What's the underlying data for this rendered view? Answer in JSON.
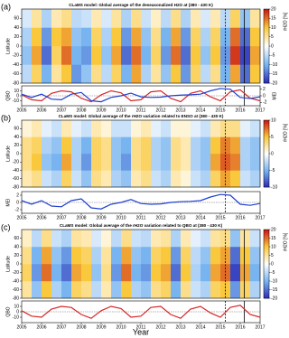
{
  "chart_data": [
    {
      "type": "heatmap",
      "panel_label": "(a)",
      "title": "CLaMS model: Global average of the deseasonalized H2O at (380 - 430 K)",
      "ylabel": "Latitude",
      "colorbar_label": "rH2O [%]",
      "xlim": [
        2005,
        2017
      ],
      "ylim": [
        -80,
        80
      ],
      "yticks": [
        -80,
        -60,
        -40,
        -20,
        0,
        20,
        40,
        60
      ],
      "xbins": [
        2005,
        2005.5,
        2006,
        2006.5,
        2007,
        2007.5,
        2008,
        2008.5,
        2009,
        2009.5,
        2010,
        2010.5,
        2011,
        2011.5,
        2012,
        2012.5,
        2013,
        2013.5,
        2014,
        2014.5,
        2015,
        2015.5,
        2016,
        2016.5,
        2017
      ],
      "ybins": [
        -80,
        -40,
        0,
        40,
        80
      ],
      "values": [
        [
          -5,
          8,
          -10,
          5,
          10,
          -12,
          -8,
          6,
          -5,
          8,
          -10,
          12,
          -6,
          5,
          -8,
          10,
          -12,
          8,
          -5,
          6,
          -10,
          12,
          -15,
          10
        ],
        [
          -8,
          12,
          -15,
          8,
          15,
          -10,
          -12,
          10,
          -8,
          12,
          -15,
          15,
          -10,
          8,
          -12,
          15,
          -15,
          10,
          -8,
          10,
          -12,
          18,
          -18,
          12
        ],
        [
          -6,
          10,
          -12,
          10,
          12,
          -8,
          -10,
          8,
          -6,
          10,
          -12,
          12,
          -8,
          6,
          -10,
          12,
          -12,
          8,
          -6,
          8,
          -10,
          15,
          -15,
          10
        ],
        [
          -3,
          5,
          -6,
          4,
          6,
          -5,
          -4,
          4,
          -3,
          5,
          -6,
          6,
          -4,
          3,
          -5,
          6,
          -6,
          4,
          -3,
          4,
          -5,
          8,
          -8,
          5
        ]
      ],
      "zlim": [
        -20,
        20
      ],
      "zticks": [
        -20,
        -15,
        -10,
        -5,
        0,
        5,
        10,
        15,
        20
      ],
      "vlines": [
        2015.25,
        2016.2
      ],
      "vline_dashed": [
        true,
        false
      ]
    },
    {
      "type": "line",
      "ylabel": "QBO",
      "y2label": "MEI",
      "xlim": [
        2005,
        2017
      ],
      "xticks": [
        2005,
        2006,
        2007,
        2008,
        2009,
        2010,
        2011,
        2012,
        2013,
        2014,
        2015,
        2016,
        2017
      ],
      "ylim": [
        -20,
        20
      ],
      "yticks": [
        -10,
        0,
        10
      ],
      "y2lim": [
        -3,
        3
      ],
      "y2ticks": [
        -2,
        0,
        2
      ],
      "x": [
        2005,
        2005.5,
        2006,
        2006.5,
        2007,
        2007.5,
        2008,
        2008.5,
        2009,
        2009.5,
        2010,
        2010.5,
        2011,
        2011.5,
        2012,
        2012.5,
        2013,
        2013.5,
        2014,
        2014.5,
        2015,
        2015.5,
        2016,
        2016.5,
        2017
      ],
      "series": [
        {
          "color": "#d62728",
          "values": [
            2,
            -8,
            -10,
            5,
            10,
            8,
            -5,
            -12,
            2,
            10,
            6,
            -10,
            -8,
            8,
            10,
            -5,
            -12,
            5,
            10,
            -2,
            -10,
            8,
            12,
            -5,
            -10
          ]
        },
        {
          "color": "#1f3fd0",
          "axis": "y2",
          "values": [
            0.5,
            -0.5,
            0.5,
            -1,
            -1.2,
            0.5,
            1,
            -1.5,
            -1.8,
            -0.5,
            0,
            0.8,
            -0.3,
            -0.5,
            -0.4,
            0,
            0.2,
            0.3,
            0.5,
            1.5,
            2.2,
            2,
            -0.5,
            -0.8,
            -0.3
          ]
        }
      ],
      "vlines": [
        2015.25,
        2016.2
      ],
      "vline_dashed": [
        true,
        false
      ]
    },
    {
      "type": "heatmap",
      "panel_label": "(b)",
      "title": "CLaMS model: Global average of the rH2O variation related to ENSO at (380 - 430 K)",
      "ylabel": "Latitude",
      "colorbar_label": "rH2O [%]",
      "xlim": [
        2005,
        2017
      ],
      "ylim": [
        -80,
        80
      ],
      "yticks": [
        -80,
        -60,
        -40,
        -20,
        0,
        20,
        40,
        60
      ],
      "xbins": [
        2005,
        2005.5,
        2006,
        2006.5,
        2007,
        2007.5,
        2008,
        2008.5,
        2009,
        2009.5,
        2010,
        2010.5,
        2011,
        2011.5,
        2012,
        2012.5,
        2013,
        2013.5,
        2014,
        2014.5,
        2015,
        2015.5,
        2016,
        2016.5,
        2017
      ],
      "ybins": [
        -80,
        -40,
        0,
        40,
        80
      ],
      "values": [
        [
          2,
          3,
          -2,
          -3,
          4,
          -2,
          -4,
          3,
          2,
          -3,
          -4,
          2,
          3,
          -2,
          -3,
          2,
          1,
          -2,
          -3,
          4,
          6,
          5,
          -2,
          -3
        ],
        [
          3,
          5,
          -4,
          -5,
          6,
          -3,
          -6,
          4,
          3,
          -4,
          -6,
          3,
          4,
          -3,
          -4,
          3,
          2,
          -3,
          -4,
          6,
          8,
          7,
          -3,
          -4
        ],
        [
          3,
          4,
          -3,
          -4,
          5,
          -3,
          -5,
          4,
          3,
          -4,
          -5,
          3,
          4,
          -3,
          -4,
          3,
          2,
          -3,
          -4,
          5,
          7,
          6,
          -3,
          -4
        ],
        [
          1,
          2,
          -1,
          -2,
          2,
          -1,
          -2,
          2,
          1,
          -2,
          -2,
          1,
          2,
          -1,
          -2,
          1,
          1,
          -1,
          -2,
          2,
          3,
          3,
          -1,
          -2
        ]
      ],
      "zlim": [
        -10,
        10
      ],
      "zticks": [
        -10,
        -5,
        0,
        5,
        10
      ],
      "vlines": [
        2015.25
      ],
      "vline_dashed": [
        true
      ]
    },
    {
      "type": "line",
      "ylabel": "MEI",
      "xlim": [
        2005,
        2017
      ],
      "xticks": [
        2005,
        2006,
        2007,
        2008,
        2009,
        2010,
        2011,
        2012,
        2013,
        2014,
        2015,
        2016,
        2017
      ],
      "ylim": [
        -3,
        3
      ],
      "yticks": [
        -2,
        0,
        2
      ],
      "x": [
        2005,
        2005.5,
        2006,
        2006.5,
        2007,
        2007.5,
        2008,
        2008.5,
        2009,
        2009.5,
        2010,
        2010.5,
        2011,
        2011.5,
        2012,
        2012.5,
        2013,
        2013.5,
        2014,
        2014.5,
        2015,
        2015.5,
        2016,
        2016.5,
        2017
      ],
      "series": [
        {
          "color": "#1f3fd0",
          "values": [
            0.5,
            -0.5,
            0.5,
            -1,
            -1.2,
            0.5,
            1,
            -1.5,
            -1.8,
            -0.5,
            0,
            0.8,
            -0.3,
            -0.5,
            -0.4,
            0,
            0.2,
            0.3,
            0.5,
            1.5,
            2.2,
            2,
            -0.5,
            -0.8,
            -0.3
          ]
        }
      ],
      "vlines": [
        2015.25
      ],
      "vline_dashed": [
        true
      ]
    },
    {
      "type": "heatmap",
      "panel_label": "(c)",
      "title": "CLaMS model: Global average of the rH2O variation related to QBO at (380 - 430 K)",
      "ylabel": "Latitude",
      "colorbar_label": "rH2O [%]",
      "xlim": [
        2005,
        2017
      ],
      "ylim": [
        -80,
        80
      ],
      "yticks": [
        -80,
        -60,
        -40,
        -20,
        0,
        20,
        40,
        60
      ],
      "xbins": [
        2005,
        2005.5,
        2006,
        2006.5,
        2007,
        2007.5,
        2008,
        2008.5,
        2009,
        2009.5,
        2010,
        2010.5,
        2011,
        2011.5,
        2012,
        2012.5,
        2013,
        2013.5,
        2014,
        2014.5,
        2015,
        2015.5,
        2016,
        2016.5,
        2017
      ],
      "ybins": [
        -80,
        -40,
        0,
        40,
        80
      ],
      "values": [
        [
          5,
          -8,
          10,
          -6,
          -10,
          8,
          6,
          -5,
          4,
          -8,
          10,
          -6,
          -8,
          6,
          8,
          -10,
          6,
          -4,
          -6,
          8,
          10,
          -12,
          8,
          -6
        ],
        [
          8,
          -12,
          15,
          -10,
          -15,
          12,
          10,
          -8,
          6,
          -12,
          15,
          -10,
          -12,
          10,
          12,
          -15,
          10,
          -6,
          -10,
          12,
          15,
          -18,
          12,
          -10
        ],
        [
          6,
          -10,
          12,
          -8,
          -12,
          10,
          8,
          -6,
          5,
          -10,
          12,
          -8,
          -10,
          8,
          10,
          -12,
          8,
          -5,
          -8,
          10,
          12,
          -15,
          10,
          -8
        ],
        [
          3,
          -5,
          6,
          -4,
          -6,
          5,
          4,
          -3,
          2,
          -5,
          6,
          -4,
          -5,
          4,
          5,
          -6,
          4,
          -2,
          -4,
          5,
          6,
          -8,
          5,
          -4
        ]
      ],
      "zlim": [
        -20,
        20
      ],
      "zticks": [
        -20,
        -15,
        -10,
        -5,
        0,
        5,
        10,
        15,
        20
      ],
      "vlines": [
        2015.25,
        2016.2
      ],
      "vline_dashed": [
        true,
        false
      ]
    },
    {
      "type": "line",
      "ylabel": "QBO",
      "xlabel": "Year",
      "xlim": [
        2005,
        2017
      ],
      "xticks": [
        2005,
        2006,
        2007,
        2008,
        2009,
        2010,
        2011,
        2012,
        2013,
        2014,
        2015,
        2016,
        2017
      ],
      "ylim": [
        -20,
        20
      ],
      "yticks": [
        -10,
        0,
        10
      ],
      "x": [
        2005,
        2005.5,
        2006,
        2006.5,
        2007,
        2007.5,
        2008,
        2008.5,
        2009,
        2009.5,
        2010,
        2010.5,
        2011,
        2011.5,
        2012,
        2012.5,
        2013,
        2013.5,
        2014,
        2014.5,
        2015,
        2015.5,
        2016,
        2016.5,
        2017
      ],
      "series": [
        {
          "color": "#d62728",
          "values": [
            2,
            -8,
            -10,
            5,
            10,
            8,
            -5,
            -12,
            2,
            10,
            6,
            -10,
            -8,
            8,
            10,
            -5,
            -12,
            5,
            10,
            -2,
            -10,
            8,
            12,
            -5,
            -10
          ]
        }
      ],
      "vlines": [
        2015.25,
        2016.2
      ],
      "vline_dashed": [
        true,
        false
      ]
    }
  ]
}
